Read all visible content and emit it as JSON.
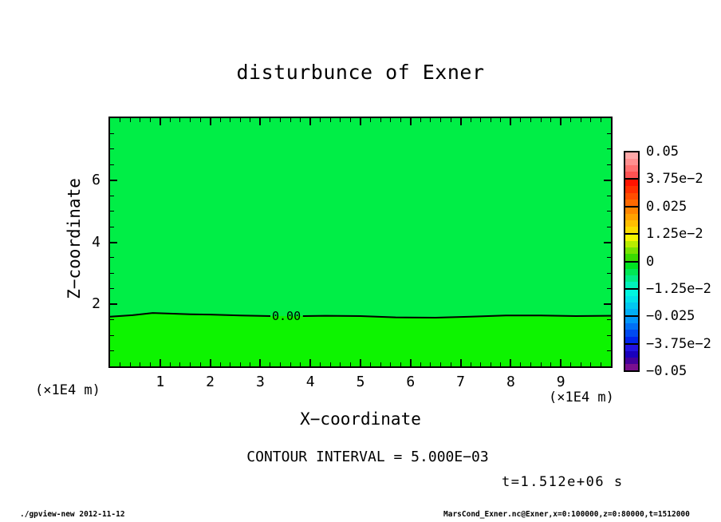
{
  "footer": {
    "left": "./gpview-new  2012-11-12",
    "right": "MarsCond_Exner.nc@Exner,x=0:100000,z=0:80000,t=1512000"
  },
  "chart_data": {
    "type": "contour",
    "title": "disturbunce of Exner",
    "xlabel": "X−coordinate",
    "ylabel": "Z−coordinate",
    "x_unit": "(×1E4 m)",
    "z_unit": "(×1E4 m)",
    "xlim": [
      0,
      10
    ],
    "zlim": [
      0,
      8
    ],
    "x_major_ticks": [
      1,
      2,
      3,
      4,
      5,
      6,
      7,
      8,
      9
    ],
    "x_minor_step": 0.2,
    "z_major_ticks": [
      2,
      4,
      6
    ],
    "z_minor_step": 0.5,
    "contour_interval": 0.005,
    "contour_interval_label": "CONTOUR INTERVAL = 5.000E−03",
    "time_label": "t=1.512e+06 s",
    "field_note": "near-zero Exner disturbance field; single zero contour near z=1.6 (x1E4 m)",
    "fill": {
      "above_zero_line": "#00ee46",
      "below_zero_line": "#0df400"
    },
    "zero_contour": {
      "level": 0,
      "level_label": "0.00",
      "label_x": 3.52,
      "label_z": 1.62,
      "gap": [
        3.2,
        3.85
      ],
      "points": [
        [
          0,
          1.6
        ],
        [
          0.45,
          1.65
        ],
        [
          0.85,
          1.72
        ],
        [
          1.2,
          1.7
        ],
        [
          1.6,
          1.68
        ],
        [
          2.0,
          1.67
        ],
        [
          2.6,
          1.64
        ],
        [
          3.2,
          1.62
        ],
        [
          3.85,
          1.62
        ],
        [
          4.3,
          1.63
        ],
        [
          5.0,
          1.62
        ],
        [
          5.7,
          1.58
        ],
        [
          6.5,
          1.57
        ],
        [
          7.2,
          1.6
        ],
        [
          7.9,
          1.64
        ],
        [
          8.6,
          1.64
        ],
        [
          9.3,
          1.62
        ],
        [
          10,
          1.63
        ]
      ]
    },
    "colorbar": {
      "min": -0.05,
      "max": 0.05,
      "labels": [
        "0.05",
        "3.75e−2",
        "0.025",
        "1.25e−2",
        "0",
        "−1.25e−2",
        "−0.025",
        "−3.75e−2",
        "−0.05"
      ],
      "values": [
        0.05,
        0.0375,
        0.025,
        0.0125,
        0,
        -0.0125,
        -0.025,
        -0.0375,
        -0.05
      ],
      "segment_colors": [
        [
          "#ffa8a8",
          "#ff8f8f",
          "#ff7070",
          "#ff5252"
        ],
        [
          "#ff1400",
          "#ff3000",
          "#ff4d00",
          "#ff6900"
        ],
        [
          "#ff8500",
          "#ffa200",
          "#ffbe00",
          "#fbdb00"
        ],
        [
          "#f5f500",
          "#b8ec00",
          "#78e300",
          "#3adb00"
        ],
        [
          "#00e322",
          "#00e755",
          "#00ec88",
          "#00f1bb"
        ],
        [
          "#00f6e0",
          "#00e2ea",
          "#00c8f0",
          "#00aff5"
        ],
        [
          "#0095fa",
          "#0070f5",
          "#004af0",
          "#0024eb"
        ],
        [
          "#2212e0",
          "#1a00bc",
          "#44009b",
          "#7a0f8f"
        ]
      ]
    }
  }
}
